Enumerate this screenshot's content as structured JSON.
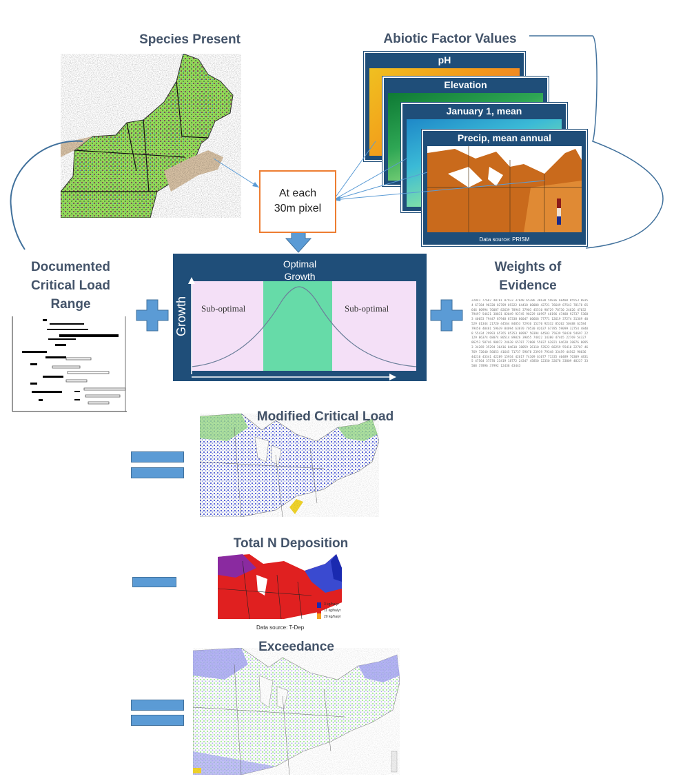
{
  "titles": {
    "species_present": "Species Present",
    "abiotic_factor_values": "Abiotic Factor Values",
    "documented_critical_load_range": [
      "Documented",
      "Critical Load",
      "Range"
    ],
    "weights_of_evidence": [
      "Weights of",
      "Evidence"
    ],
    "modified_critical_load": "Modified Critical Load",
    "total_n_deposition": "Total N Deposition",
    "exceedance": "Exceedance"
  },
  "abiotic_panels": [
    "pH",
    "Elevation",
    "January 1, mean",
    "Precip, mean annual"
  ],
  "precip_source": "Data source: PRISM",
  "pixel_box": [
    "At each",
    "30m pixel"
  ],
  "growth_chart": {
    "top_label": [
      "Optimal",
      "Growth"
    ],
    "left_band": "Sub-optimal",
    "right_band": "Sub-optimal",
    "y_axis": "Growth"
  },
  "deposition": {
    "source": "Data source: T-Dep",
    "legend": [
      "3 kg/ha/yr",
      "11 kg/ha/yr",
      "20 kg/ha/yr"
    ]
  },
  "colors": {
    "title_text": "#44546a",
    "navy_frame": "#1f4e79",
    "symbol_blue": "#5b9bd5",
    "pixel_box_border": "#ed7d31",
    "optimal_band": "#66dba8",
    "suboptimal_band": "#f4e0f7"
  }
}
